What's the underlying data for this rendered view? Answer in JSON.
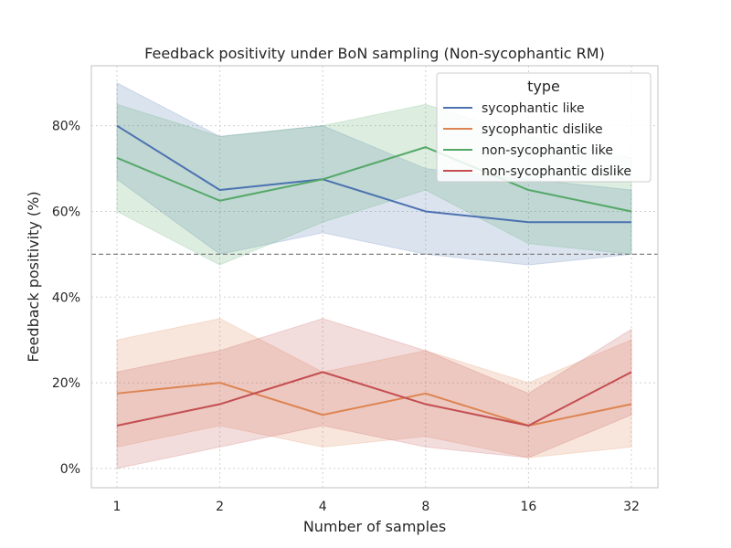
{
  "chart_data": {
    "type": "line",
    "title": "Feedback positivity under BoN sampling (Non-sycophantic RM)",
    "xlabel": "Number of samples",
    "ylabel": "Feedback positivity (%)",
    "x": [
      "1",
      "2",
      "4",
      "8",
      "16",
      "32"
    ],
    "ylim": [
      -4.5,
      94
    ],
    "yticks": [
      0,
      20,
      40,
      60,
      80
    ],
    "ytick_labels": [
      "0%",
      "20%",
      "40%",
      "60%",
      "80%"
    ],
    "grid": true,
    "reference_line": 50,
    "legend": {
      "title": "type",
      "position": "top-right"
    },
    "series": [
      {
        "name": "sycophantic like",
        "color": "#4c72b0",
        "values": [
          80,
          65,
          67.5,
          60,
          57.5,
          57.5
        ],
        "ci_low": [
          67.5,
          50,
          55,
          50,
          47.5,
          50
        ],
        "ci_high": [
          90,
          77.5,
          80,
          70,
          67.5,
          65
        ]
      },
      {
        "name": "sycophantic dislike",
        "color": "#dd8452",
        "values": [
          17.5,
          20,
          12.5,
          17.5,
          10,
          15
        ],
        "ci_low": [
          5,
          10,
          5,
          7.5,
          2.5,
          5
        ],
        "ci_high": [
          30,
          35,
          22.5,
          27.5,
          20,
          30
        ]
      },
      {
        "name": "non-sycophantic like",
        "color": "#55a868",
        "values": [
          72.5,
          62.5,
          67.5,
          75,
          65,
          60
        ],
        "ci_low": [
          60,
          47.5,
          57.5,
          65,
          52.5,
          50
        ],
        "ci_high": [
          85,
          77.5,
          80,
          85,
          77.5,
          72.5
        ]
      },
      {
        "name": "non-sycophantic dislike",
        "color": "#c44e52",
        "values": [
          10,
          15,
          22.5,
          15,
          10,
          22.5
        ],
        "ci_low": [
          0,
          5,
          10,
          5,
          2.5,
          12.5
        ],
        "ci_high": [
          22.5,
          27.5,
          35,
          27.5,
          17.5,
          32.5
        ]
      }
    ]
  }
}
